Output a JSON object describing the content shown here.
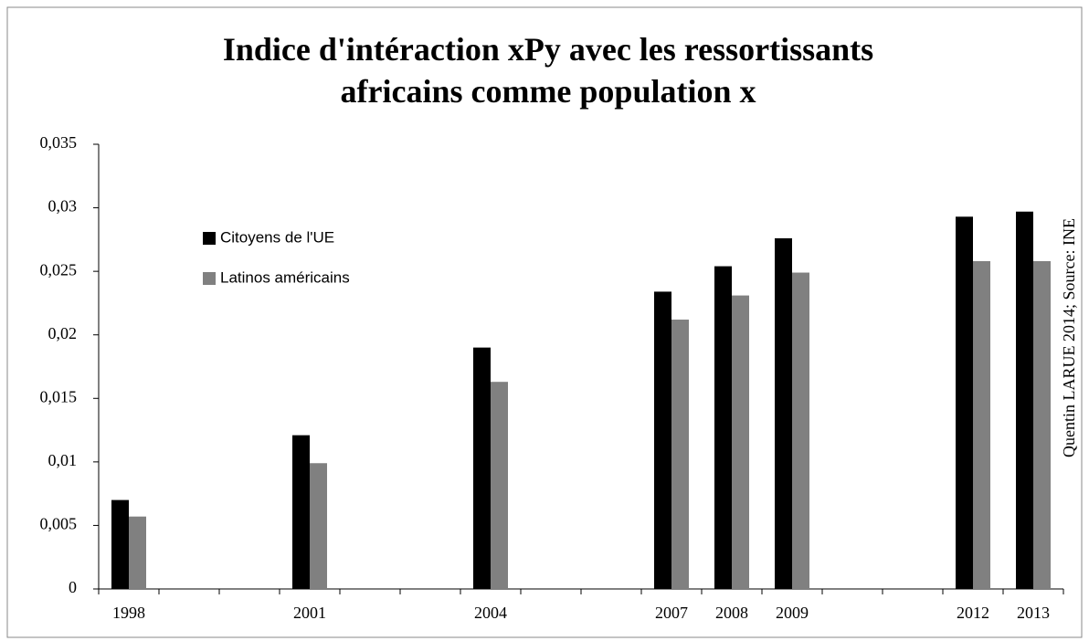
{
  "chart_data": {
    "type": "bar",
    "title": "Indice d'intéraction xPy avec les ressortissants africains comme population x",
    "annotation": "Quentin LARUE 2014; Source: INE",
    "categories": [
      "1998",
      null,
      null,
      "2001",
      null,
      null,
      "2004",
      null,
      null,
      "2007",
      "2008",
      "2009",
      null,
      null,
      "2012",
      "2013"
    ],
    "series": [
      {
        "name": "Citoyens de l'UE",
        "color": "#000000",
        "values": [
          0.007,
          null,
          null,
          0.0121,
          null,
          null,
          0.019,
          null,
          null,
          0.0234,
          0.0254,
          0.0276,
          null,
          null,
          0.0293,
          0.0297
        ]
      },
      {
        "name": "Latinos américains",
        "color": "#808080",
        "values": [
          0.0057,
          null,
          null,
          0.0099,
          null,
          null,
          0.0163,
          null,
          null,
          0.0212,
          0.0231,
          0.0249,
          null,
          null,
          0.0258,
          0.0258
        ]
      }
    ],
    "ylim": [
      0,
      0.035
    ],
    "yticks": [
      0,
      {
        "value": 0.005,
        "label": "0,005"
      },
      {
        "value": 0.01,
        "label": "0,01"
      },
      {
        "value": 0.015,
        "label": "0,015"
      },
      {
        "value": 0.02,
        "label": "0,02"
      },
      {
        "value": 0.025,
        "label": "0,025"
      },
      {
        "value": 0.03,
        "label": "0,03"
      },
      {
        "value": 0.035,
        "label": "0,035"
      }
    ],
    "legend": "upper left"
  }
}
